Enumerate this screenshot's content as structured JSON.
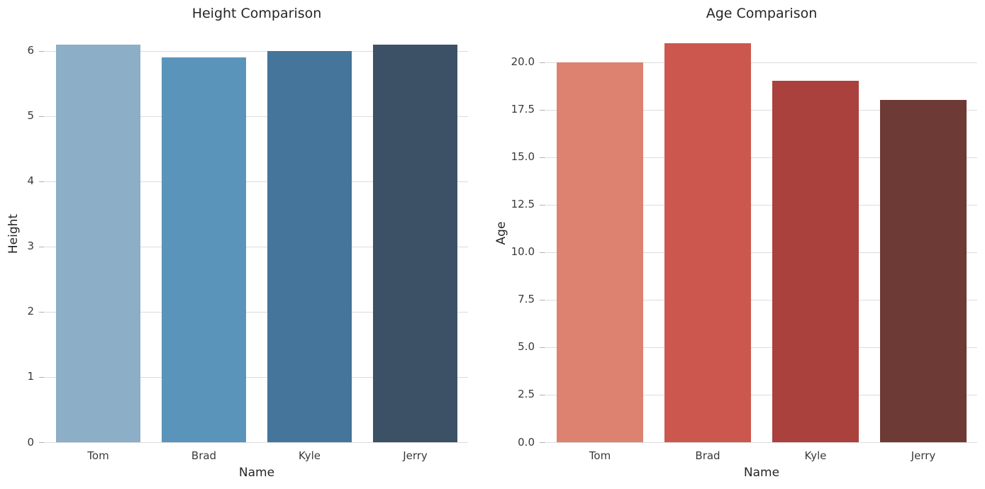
{
  "figure": {
    "background_color": "#ffffff",
    "grid_color": "#dcdcdc",
    "tick_mark_color": "#b2b2b2",
    "tick_label_color": "#3a3a3a",
    "text_color": "#262626"
  },
  "chart_data": [
    {
      "type": "bar",
      "title": "Height Comparison",
      "xlabel": "Name",
      "ylabel": "Height",
      "categories": [
        "Tom",
        "Brad",
        "Kyle",
        "Jerry"
      ],
      "values": [
        6.1,
        5.9,
        6.0,
        6.1
      ],
      "ylim": [
        0,
        6.4
      ],
      "yticks": [
        0,
        1,
        2,
        3,
        4,
        5,
        6
      ],
      "ytick_labels": [
        "0",
        "1",
        "2",
        "3",
        "4",
        "5",
        "6"
      ],
      "bar_colors": [
        "#8caec7",
        "#5b94ba",
        "#45759a",
        "#3c5165"
      ],
      "grid": "horizontal",
      "legend": "none"
    },
    {
      "type": "bar",
      "title": "Age Comparison",
      "xlabel": "Name",
      "ylabel": "Age",
      "categories": [
        "Tom",
        "Brad",
        "Kyle",
        "Jerry"
      ],
      "values": [
        20,
        21,
        19,
        18
      ],
      "ylim": [
        0,
        22
      ],
      "yticks": [
        0,
        2.5,
        5,
        7.5,
        10,
        12.5,
        15,
        17.5,
        20
      ],
      "ytick_labels": [
        "0.0",
        "2.5",
        "5.0",
        "7.5",
        "10.0",
        "12.5",
        "15.0",
        "17.5",
        "20.0"
      ],
      "bar_colors": [
        "#dd8271",
        "#cc574e",
        "#ab413c",
        "#6e3a36"
      ],
      "grid": "horizontal",
      "legend": "none"
    }
  ]
}
